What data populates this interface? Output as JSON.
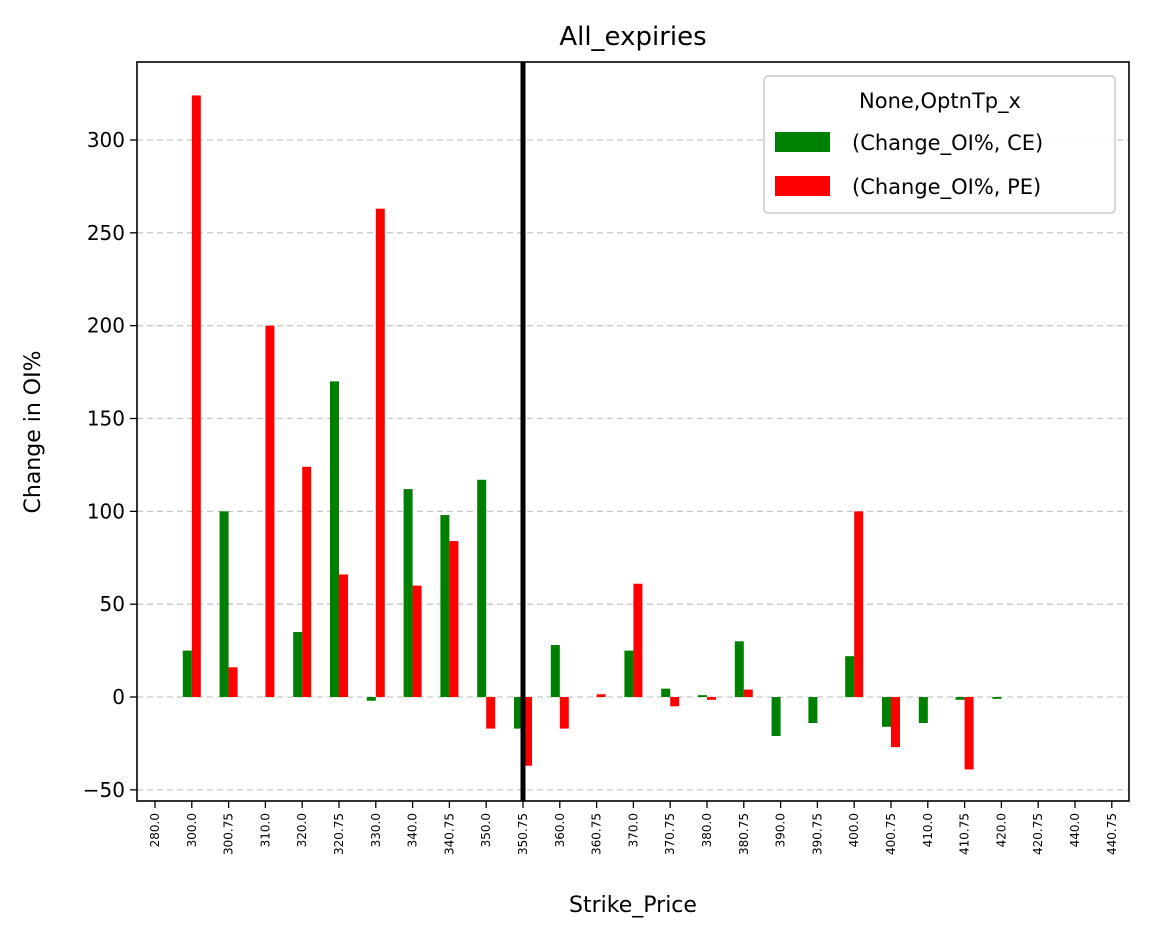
{
  "chart_data": {
    "type": "bar",
    "title": "All_expiries",
    "xlabel": "Strike_Price",
    "ylabel": "Change in OI%",
    "ylim": [
      -56,
      342
    ],
    "yticks": [
      "−50",
      "0",
      "50",
      "100",
      "150",
      "200",
      "250",
      "300"
    ],
    "ytick_values": [
      -50,
      0,
      50,
      100,
      150,
      200,
      250,
      300
    ],
    "grid": "y-dashed",
    "legend": {
      "title": "None,OptnTp_x",
      "placement": "top-right"
    },
    "categories": [
      "280.0",
      "300.0",
      "300.75",
      "310.0",
      "320.0",
      "320.75",
      "330.0",
      "340.0",
      "340.75",
      "350.0",
      "350.75",
      "360.0",
      "360.75",
      "370.0",
      "370.75",
      "380.0",
      "380.75",
      "390.0",
      "390.75",
      "400.0",
      "400.75",
      "410.0",
      "410.75",
      "420.0",
      "420.75",
      "440.0",
      "440.75"
    ],
    "series": [
      {
        "name": "(Change_OI%, CE)",
        "color": "#008000",
        "values": [
          0,
          25,
          100,
          0,
          35,
          170,
          -2,
          112,
          98,
          117,
          -17,
          28,
          0,
          25,
          4.5,
          1,
          30,
          -21,
          -14,
          22,
          -16,
          -14,
          -1.5,
          -1,
          0,
          0,
          0
        ]
      },
      {
        "name": "(Change_OI%, PE)",
        "color": "#ff0000",
        "values": [
          0,
          324,
          16,
          200,
          124,
          66,
          263,
          60,
          84,
          -17,
          -37,
          -17,
          1.5,
          61,
          -5,
          -1.5,
          4,
          0,
          0,
          100,
          -27,
          0,
          -39,
          0,
          0,
          0,
          0
        ]
      }
    ],
    "vline": {
      "at_category": "350.75",
      "color": "#000000"
    }
  }
}
